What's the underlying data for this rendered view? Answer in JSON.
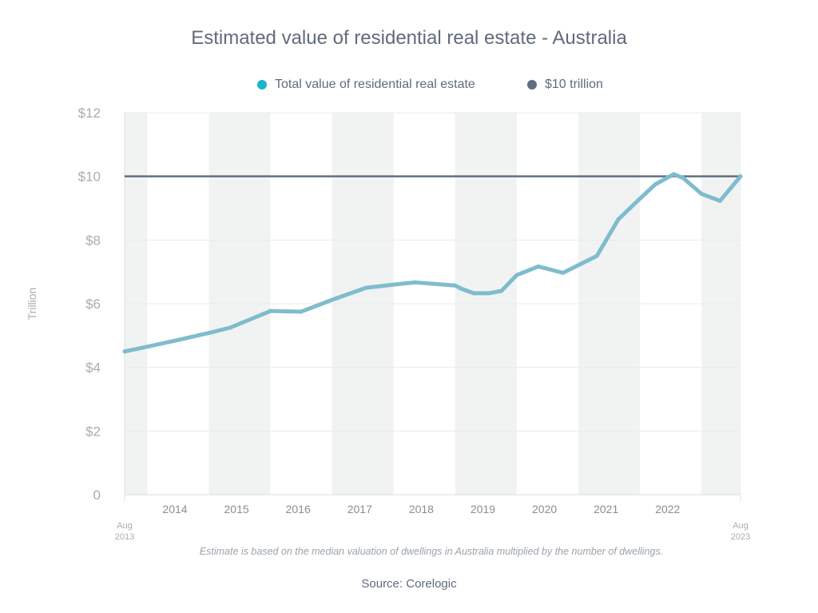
{
  "chart_data": {
    "type": "line",
    "title": "Estimated value of residential real estate - Australia",
    "ylabel": "Trillion",
    "ylim": [
      0,
      12
    ],
    "yticks": [
      0,
      2,
      4,
      6,
      8,
      10,
      12
    ],
    "ytick_labels": [
      "0",
      "$2",
      "$4",
      "$6",
      "$8",
      "$10",
      "$12"
    ],
    "xlim": [
      2013.583,
      2023.583
    ],
    "year_labels": [
      {
        "x": 2014.4,
        "label": "2014"
      },
      {
        "x": 2015.4,
        "label": "2015"
      },
      {
        "x": 2016.4,
        "label": "2016"
      },
      {
        "x": 2017.4,
        "label": "2017"
      },
      {
        "x": 2018.4,
        "label": "2018"
      },
      {
        "x": 2019.4,
        "label": "2019"
      },
      {
        "x": 2020.4,
        "label": "2020"
      },
      {
        "x": 2021.4,
        "label": "2021"
      },
      {
        "x": 2022.4,
        "label": "2022"
      }
    ],
    "edge_labels": [
      {
        "x": 2013.583,
        "line1": "Aug",
        "line2": "2013"
      },
      {
        "x": 2023.583,
        "line1": "Aug",
        "line2": "2023"
      }
    ],
    "shaded_bands": [
      [
        2013.583,
        2013.95
      ],
      [
        2014.95,
        2015.95
      ],
      [
        2016.95,
        2017.95
      ],
      [
        2018.95,
        2019.95
      ],
      [
        2020.95,
        2021.95
      ],
      [
        2022.95,
        2023.583
      ]
    ],
    "grid": true,
    "legend_position": "top",
    "series": [
      {
        "name": "Total value of residential real estate",
        "color": "#7fbccd",
        "legend_color": "#1ab5c9",
        "points": [
          [
            2013.583,
            4.5
          ],
          [
            2013.95,
            4.65
          ],
          [
            2014.5,
            4.88
          ],
          [
            2014.95,
            5.08
          ],
          [
            2015.3,
            5.25
          ],
          [
            2015.95,
            5.77
          ],
          [
            2016.45,
            5.75
          ],
          [
            2016.95,
            6.12
          ],
          [
            2017.5,
            6.5
          ],
          [
            2017.95,
            6.6
          ],
          [
            2018.3,
            6.67
          ],
          [
            2018.95,
            6.57
          ],
          [
            2019.05,
            6.47
          ],
          [
            2019.25,
            6.33
          ],
          [
            2019.5,
            6.33
          ],
          [
            2019.7,
            6.4
          ],
          [
            2019.95,
            6.9
          ],
          [
            2020.3,
            7.17
          ],
          [
            2020.7,
            6.97
          ],
          [
            2021.25,
            7.5
          ],
          [
            2021.6,
            8.65
          ],
          [
            2021.95,
            9.3
          ],
          [
            2022.2,
            9.75
          ],
          [
            2022.5,
            10.07
          ],
          [
            2022.65,
            9.95
          ],
          [
            2022.95,
            9.45
          ],
          [
            2023.25,
            9.23
          ],
          [
            2023.583,
            10.0
          ]
        ]
      },
      {
        "name": "$10 trillion",
        "color": "#5f6f83",
        "legend_color": "#5f6f83",
        "points": [
          [
            2013.583,
            10
          ],
          [
            2023.583,
            10
          ]
        ]
      }
    ],
    "annotation": "Estimate is based on the median valuation of dwellings in Australia multiplied by the number of dwellings.",
    "source": "Source: Corelogic"
  }
}
